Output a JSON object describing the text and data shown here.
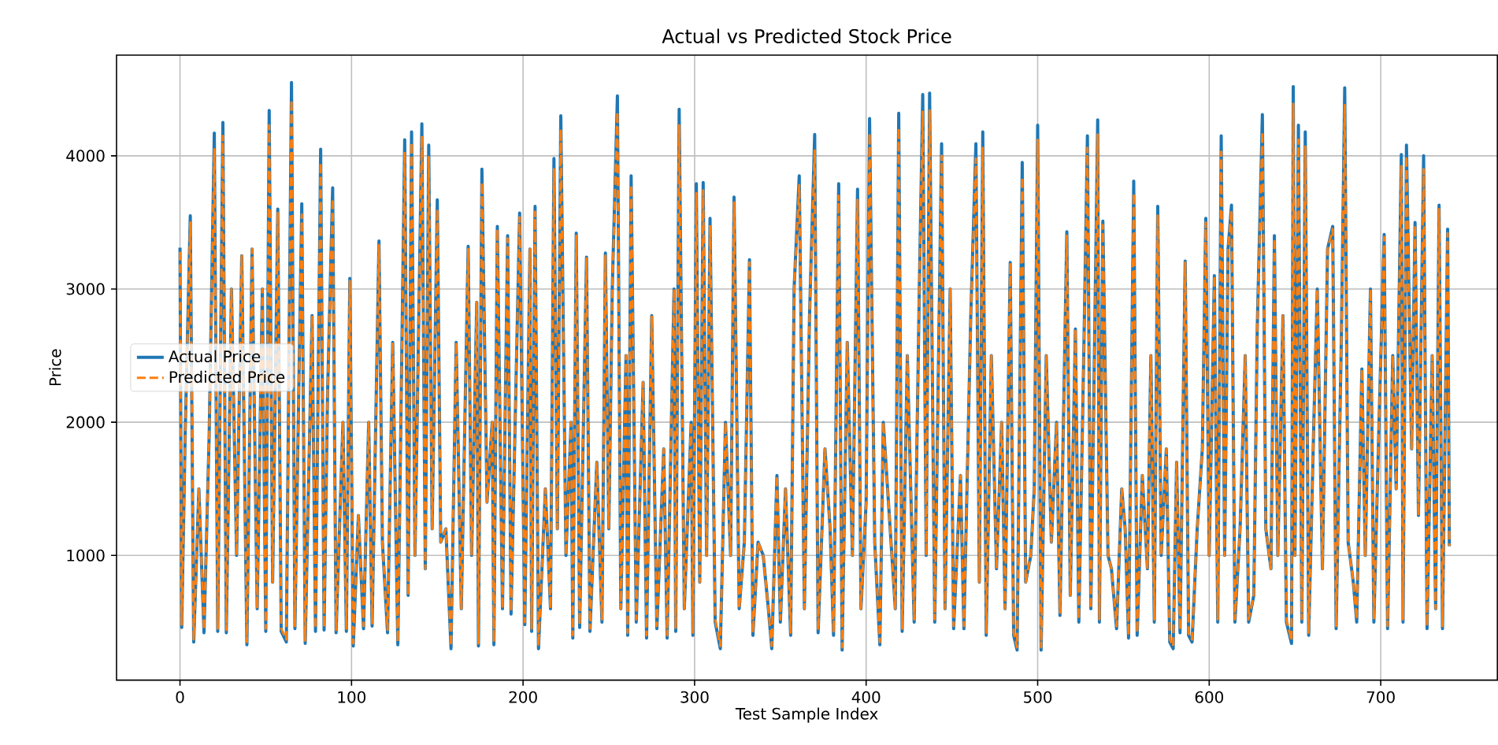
{
  "chart_data": {
    "type": "line",
    "title": "Actual vs Predicted Stock Price",
    "xlabel": "Test Sample Index",
    "ylabel": "Price",
    "xlim": [
      -37,
      768
    ],
    "ylim": [
      64,
      4756
    ],
    "xticks": [
      0,
      100,
      200,
      300,
      400,
      500,
      600,
      700
    ],
    "yticks": [
      1000,
      2000,
      3000,
      4000
    ],
    "grid": true,
    "legend": "left",
    "marker": "none",
    "x": [
      0,
      1,
      3,
      6,
      8,
      11,
      14,
      17,
      20,
      22,
      25,
      27,
      30,
      33,
      36,
      39,
      42,
      45,
      48,
      50,
      52,
      54,
      57,
      59,
      62,
      65,
      67,
      71,
      73,
      77,
      79,
      82,
      84,
      86,
      89,
      91,
      95,
      97,
      99,
      101,
      104,
      107,
      110,
      112,
      116,
      118,
      121,
      124,
      127,
      131,
      133,
      135,
      137,
      141,
      143,
      145,
      147,
      150,
      152,
      155,
      158,
      161,
      164,
      168,
      170,
      173,
      174,
      176,
      179,
      182,
      183,
      185,
      188,
      191,
      193,
      198,
      201,
      204,
      205,
      207,
      209,
      213,
      216,
      218,
      220,
      222,
      225,
      228,
      229,
      231,
      233,
      237,
      239,
      243,
      246,
      248,
      250,
      252,
      255,
      257,
      260,
      261,
      263,
      266,
      270,
      272,
      275,
      278,
      282,
      284,
      288,
      289,
      291,
      294,
      298,
      299,
      301,
      303,
      305,
      307,
      309,
      312,
      315,
      318,
      321,
      323,
      326,
      329,
      332,
      334,
      337,
      340,
      343,
      345,
      348,
      350,
      353,
      356,
      358,
      361,
      364,
      367,
      370,
      372,
      376,
      379,
      381,
      384,
      386,
      389,
      392,
      395,
      397,
      400,
      402,
      405,
      408,
      410,
      414,
      417,
      419,
      421,
      424,
      428,
      431,
      433,
      435,
      437,
      440,
      444,
      446,
      449,
      451,
      455,
      457,
      461,
      464,
      466,
      468,
      470,
      473,
      476,
      479,
      481,
      484,
      486,
      488,
      491,
      493,
      496,
      498,
      500,
      502,
      505,
      508,
      511,
      513,
      517,
      519,
      522,
      524,
      527,
      529,
      531,
      535,
      536,
      538,
      541,
      543,
      546,
      549,
      551,
      553,
      556,
      558,
      561,
      564,
      566,
      568,
      570,
      572,
      575,
      577,
      579,
      581,
      583,
      586,
      588,
      590,
      593,
      596,
      598,
      600,
      603,
      605,
      607,
      609,
      611,
      613,
      615,
      618,
      621,
      623,
      626,
      628,
      631,
      633,
      636,
      638,
      640,
      643,
      645,
      648,
      649,
      650,
      652,
      654,
      656,
      658,
      661,
      663,
      666,
      669,
      672,
      674,
      677,
      679,
      681,
      684,
      686,
      689,
      691,
      694,
      696,
      699,
      702,
      704,
      707,
      709,
      712,
      713,
      715,
      718,
      720,
      722,
      725,
      727,
      730,
      732,
      734,
      736,
      739,
      740
    ],
    "series": [
      {
        "name": "Actual Price",
        "color": "#1f77b4",
        "line_style": "solid",
        "values": [
          3310,
          460,
          1900,
          3550,
          350,
          1500,
          420,
          1900,
          4170,
          430,
          4250,
          420,
          3000,
          1000,
          3250,
          330,
          3300,
          600,
          3000,
          430,
          4340,
          800,
          3600,
          430,
          350,
          4550,
          450,
          3640,
          340,
          2800,
          430,
          4050,
          440,
          2200,
          3760,
          420,
          2000,
          430,
          3080,
          320,
          1300,
          450,
          2000,
          470,
          3360,
          1100,
          420,
          2600,
          330,
          4120,
          700,
          4180,
          1000,
          4240,
          900,
          4080,
          1200,
          3670,
          1100,
          1200,
          300,
          2600,
          600,
          3320,
          1000,
          2900,
          320,
          3900,
          1400,
          2000,
          330,
          3470,
          600,
          3400,
          560,
          3570,
          480,
          3300,
          430,
          3620,
          300,
          1500,
          600,
          3980,
          1200,
          4300,
          1000,
          2000,
          380,
          3420,
          460,
          3240,
          430,
          1700,
          500,
          3270,
          1200,
          3000,
          4450,
          600,
          2500,
          400,
          3850,
          500,
          2300,
          380,
          2800,
          450,
          1800,
          380,
          3000,
          430,
          4350,
          600,
          2000,
          400,
          3790,
          800,
          3800,
          1000,
          3530,
          500,
          300,
          2000,
          1000,
          3690,
          600,
          1100,
          3220,
          400,
          1100,
          1000,
          600,
          300,
          1600,
          500,
          1500,
          400,
          3000,
          3850,
          600,
          2800,
          4160,
          420,
          1800,
          1200,
          400,
          3790,
          290,
          2600,
          1000,
          3750,
          600,
          1400,
          4280,
          1100,
          330,
          2000,
          1200,
          600,
          4320,
          430,
          2500,
          500,
          3000,
          4460,
          1000,
          4470,
          500,
          4090,
          600,
          3000,
          450,
          1600,
          450,
          2800,
          4090,
          800,
          4180,
          400,
          2500,
          900,
          2000,
          600,
          3200,
          400,
          290,
          3950,
          800,
          1000,
          1500,
          4230,
          290,
          2500,
          1100,
          2000,
          550,
          3430,
          700,
          2700,
          500,
          2600,
          4150,
          600,
          4270,
          500,
          3510,
          1000,
          900,
          450,
          1500,
          1200,
          380,
          3810,
          400,
          1600,
          900,
          2500,
          500,
          3620,
          1000,
          1800,
          350,
          300,
          1700,
          420,
          3210,
          400,
          350,
          1200,
          1800,
          3530,
          1000,
          3100,
          500,
          4150,
          1000,
          3300,
          3630,
          500,
          1200,
          2500,
          500,
          700,
          2700,
          4310,
          1200,
          900,
          3400,
          1000,
          2800,
          500,
          340,
          4520,
          1000,
          4230,
          500,
          4180,
          400,
          2000,
          3000,
          900,
          3300,
          3470,
          450,
          2600,
          4510,
          1100,
          800,
          500,
          2400,
          1000,
          3000,
          500,
          2000,
          3410,
          450,
          2500,
          1500,
          4010,
          500,
          4080,
          1800,
          3500,
          1300,
          4000,
          450,
          2500,
          600,
          3630,
          450,
          3450,
          1070
        ]
      },
      {
        "name": "Predicted Price",
        "color": "#ff7f0e",
        "line_style": "dashed",
        "values": [
          3280,
          480,
          1900,
          3500,
          370,
          1500,
          440,
          1900,
          4050,
          450,
          4150,
          440,
          3000,
          1000,
          3250,
          350,
          3300,
          600,
          3000,
          450,
          4230,
          800,
          3580,
          450,
          370,
          4420,
          470,
          3560,
          360,
          2800,
          450,
          3950,
          460,
          2200,
          3680,
          440,
          2000,
          450,
          3060,
          340,
          1300,
          470,
          2000,
          490,
          3330,
          1100,
          440,
          2600,
          350,
          4030,
          700,
          4100,
          1000,
          4150,
          900,
          3990,
          1200,
          3600,
          1100,
          1200,
          320,
          2600,
          600,
          3300,
          1000,
          2900,
          340,
          3800,
          1400,
          2000,
          350,
          3450,
          600,
          3380,
          580,
          3540,
          500,
          3300,
          450,
          3580,
          320,
          1500,
          600,
          3900,
          1200,
          4200,
          1000,
          2000,
          400,
          3400,
          480,
          3230,
          450,
          1700,
          520,
          3250,
          1200,
          3000,
          4330,
          600,
          2500,
          420,
          3780,
          520,
          2300,
          400,
          2800,
          470,
          1800,
          400,
          3000,
          450,
          4230,
          600,
          2000,
          420,
          3720,
          800,
          3740,
          1000,
          3480,
          520,
          320,
          2000,
          1000,
          3650,
          600,
          1100,
          3200,
          420,
          1100,
          1000,
          600,
          320,
          1600,
          520,
          1500,
          420,
          3000,
          3780,
          600,
          2800,
          4040,
          440,
          1800,
          1200,
          420,
          3700,
          310,
          2600,
          1000,
          3670,
          600,
          1400,
          4170,
          1100,
          350,
          2000,
          1200,
          600,
          4210,
          450,
          2500,
          520,
          3000,
          4330,
          1000,
          4340,
          520,
          4000,
          600,
          3000,
          470,
          1600,
          470,
          2800,
          3980,
          800,
          4060,
          420,
          2500,
          900,
          2000,
          600,
          3200,
          420,
          310,
          3840,
          800,
          1000,
          1500,
          4120,
          310,
          2500,
          1100,
          2000,
          570,
          3400,
          700,
          2700,
          520,
          2600,
          4060,
          600,
          4160,
          520,
          3480,
          1000,
          900,
          470,
          1500,
          1200,
          400,
          3720,
          420,
          1600,
          900,
          2500,
          520,
          3560,
          1000,
          1800,
          370,
          320,
          1700,
          440,
          3200,
          420,
          370,
          1200,
          1800,
          3500,
          1000,
          3100,
          520,
          4030,
          1000,
          3300,
          3590,
          520,
          1200,
          2500,
          520,
          700,
          2700,
          4180,
          1200,
          900,
          3380,
          1000,
          2800,
          520,
          360,
          4390,
          1000,
          4120,
          520,
          4070,
          420,
          2000,
          3000,
          900,
          3300,
          3450,
          470,
          2600,
          4380,
          1100,
          800,
          520,
          2400,
          1000,
          3000,
          520,
          2000,
          3390,
          470,
          2500,
          1500,
          3930,
          520,
          4000,
          1800,
          3480,
          1300,
          3900,
          470,
          2500,
          600,
          3600,
          470,
          3420,
          1070
        ]
      }
    ]
  }
}
